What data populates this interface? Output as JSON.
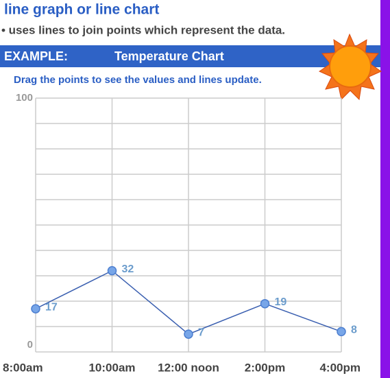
{
  "header": {
    "title": "line graph or line chart",
    "bullet": "• uses lines to join points which represent the data.",
    "banner_label": "EXAMPLE:",
    "instruction": "Drag the points to see the values and lines update."
  },
  "chart_data": {
    "type": "line",
    "title": "Temperature Chart",
    "categories": [
      "8:00am",
      "10:00am",
      "12:00 noon",
      "2:00pm",
      "4:00pm"
    ],
    "values": [
      17,
      32,
      7,
      19,
      8
    ],
    "color": "#3a5fb0",
    "ylim": [
      0,
      100
    ],
    "yticks": [
      0,
      100
    ],
    "ygrid": [
      0,
      10,
      20,
      30,
      40,
      50,
      60,
      70,
      80,
      90,
      100
    ],
    "grid": true
  }
}
